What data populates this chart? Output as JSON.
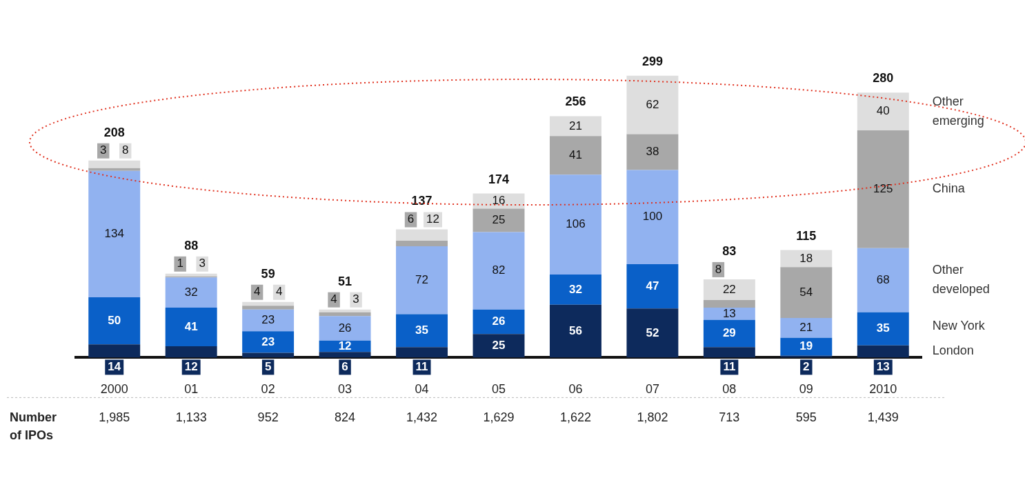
{
  "chart_data": {
    "type": "bar",
    "stacked": true,
    "data_labels": true,
    "legend": "right",
    "grid": false,
    "categories": [
      "2000",
      "01",
      "02",
      "03",
      "04",
      "05",
      "06",
      "07",
      "08",
      "09",
      "2010"
    ],
    "series": [
      {
        "name": "London",
        "color": "#0d2a5c",
        "values": [
          14,
          12,
          5,
          6,
          11,
          25,
          56,
          52,
          11,
          2,
          13
        ]
      },
      {
        "name": "New York",
        "color": "#0a60c8",
        "values": [
          50,
          41,
          23,
          12,
          35,
          26,
          32,
          47,
          29,
          19,
          35
        ]
      },
      {
        "name": "Other developed",
        "color": "#91b2f0",
        "values": [
          134,
          32,
          23,
          26,
          72,
          82,
          106,
          100,
          13,
          21,
          68
        ]
      },
      {
        "name": "China",
        "color": "#a8a8a8",
        "values": [
          3,
          1,
          4,
          4,
          6,
          25,
          41,
          38,
          8,
          54,
          125
        ]
      },
      {
        "name": "Other emerging",
        "color": "#dedede",
        "values": [
          8,
          3,
          4,
          3,
          12,
          16,
          21,
          62,
          22,
          18,
          40
        ]
      }
    ],
    "totals": [
      "208",
      "88",
      "59",
      "51",
      "137",
      "174",
      "256",
      "299",
      "83",
      "115",
      "280"
    ],
    "annotations": [
      "Number of IPOs",
      "1,985",
      "1,133",
      "952",
      "824",
      "1,432",
      "1,629",
      "1,622",
      "1,802",
      "713",
      "595",
      "1,439"
    ]
  }
}
